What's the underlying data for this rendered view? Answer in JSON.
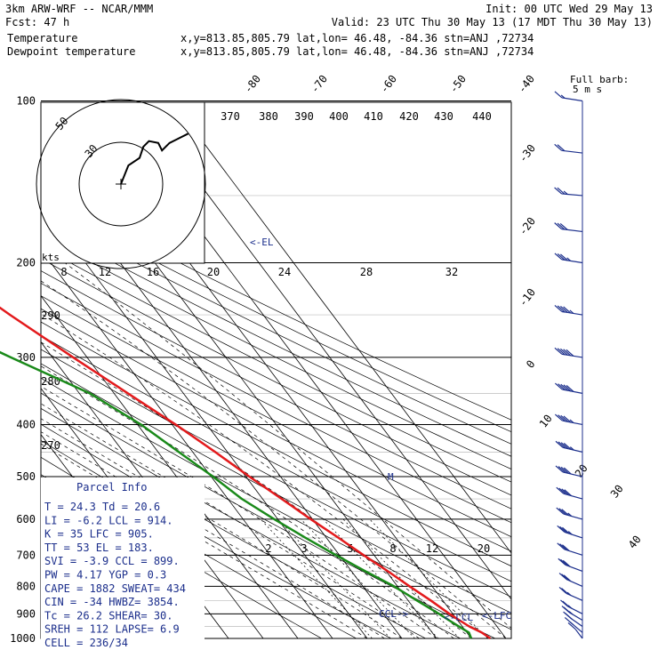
{
  "header": {
    "line1_left": "3km ARW-WRF -- NCAR/MMM",
    "line1_right": "Init: 00 UTC Wed 29 May 13",
    "line2_left": "Fcst:    47 h",
    "line2_right": "Valid: 23 UTC Thu 30 May 13 (17 MDT Thu 30 May 13)",
    "temp_label": "Temperature",
    "temp_info": "x,y=813.85,805.79   lat,lon= 46.48, -84.36  stn=ANJ ,72734",
    "dew_label": "Dewpoint temperature",
    "dew_info": "x,y=813.85,805.79   lat,lon= 46.48, -84.36  stn=ANJ ,72734"
  },
  "colors": {
    "temperature": "#e31a1c",
    "dewpoint": "#1a8a1a",
    "parcel_text": "#1c2f8c",
    "grid": "#000000"
  },
  "barb_legend": {
    "line1": "Full barb:",
    "line2": "5 m s"
  },
  "parcel_info": {
    "title": "Parcel Info",
    "rows": [
      "T  =   24.3 Td =  20.6",
      "LI =   -6.2 LCL =  914.",
      "K  =     35 LFC =  905.",
      "TT =     53 EL  =  183.",
      "SVI =  -3.9 CCL =  899.",
      "PW =   4.17 YGP =   0.3",
      "CAPE = 1882 SWEAT=  434",
      "CIN =   -34 HWBZ= 3854.",
      "Tc =   26.2 SHEAR=  30.",
      "SREH =  112 LAPSE=  6.9",
      "CELL = 236/34"
    ]
  },
  "annotations": {
    "el": "<-EL",
    "lcl": "<-LCL",
    "lfc": "<-LFC",
    "ccl": "CCL->",
    "m": "M"
  },
  "hodograph": {
    "units": "kts",
    "ring_labels": [
      "50",
      "30"
    ]
  },
  "chart_data": {
    "type": "line",
    "diagram": "skew-T log-p",
    "pressure_levels": [
      100,
      200,
      300,
      400,
      500,
      600,
      700,
      800,
      900,
      1000
    ],
    "pressure_labels": [
      "100",
      "200",
      "300",
      "400",
      "500",
      "600",
      "700",
      "800",
      "900",
      "1000"
    ],
    "isotherm_labels": [
      "-80",
      "-70",
      "-60",
      "-50",
      "-40",
      "-30",
      "-20",
      "-10",
      "0",
      "10",
      "20",
      "30",
      "40"
    ],
    "theta_labels": [
      "370",
      "380",
      "390",
      "400",
      "410",
      "420",
      "430",
      "440",
      "290",
      "280",
      "270"
    ],
    "mixing_ratio_labels": [
      "2",
      "3",
      "5",
      "8",
      "12",
      "20"
    ],
    "inset_axis_labels": [
      "8",
      "12",
      "16",
      "20",
      "24",
      "28",
      "32"
    ],
    "series": [
      {
        "name": "Temperature",
        "points": [
          {
            "p": 1000,
            "t": 25.5
          },
          {
            "p": 975,
            "t": 24.3
          },
          {
            "p": 950,
            "t": 22.0
          },
          {
            "p": 925,
            "t": 20.5
          },
          {
            "p": 900,
            "t": 19.0
          },
          {
            "p": 850,
            "t": 16.5
          },
          {
            "p": 800,
            "t": 13.5
          },
          {
            "p": 750,
            "t": 10.5
          },
          {
            "p": 700,
            "t": 7.0
          },
          {
            "p": 650,
            "t": 3.5
          },
          {
            "p": 600,
            "t": -0.5
          },
          {
            "p": 550,
            "t": -4.5
          },
          {
            "p": 500,
            "t": -9.0
          },
          {
            "p": 450,
            "t": -13.5
          },
          {
            "p": 400,
            "t": -19.0
          },
          {
            "p": 350,
            "t": -26.0
          },
          {
            "p": 300,
            "t": -34.0
          },
          {
            "p": 250,
            "t": -43.0
          },
          {
            "p": 200,
            "t": -53.0
          },
          {
            "p": 175,
            "t": -58.5
          },
          {
            "p": 150,
            "t": -61.0
          },
          {
            "p": 135,
            "t": -61.5
          },
          {
            "p": 125,
            "t": -63.0
          },
          {
            "p": 110,
            "t": -65.0
          },
          {
            "p": 100,
            "t": -66.0
          }
        ]
      },
      {
        "name": "Dewpoint temperature",
        "points": [
          {
            "p": 1000,
            "t": 20.0
          },
          {
            "p": 975,
            "t": 20.6
          },
          {
            "p": 950,
            "t": 19.0
          },
          {
            "p": 925,
            "t": 17.5
          },
          {
            "p": 900,
            "t": 16.0
          },
          {
            "p": 850,
            "t": 12.5
          },
          {
            "p": 800,
            "t": 9.0
          },
          {
            "p": 750,
            "t": 4.0
          },
          {
            "p": 700,
            "t": -1.0
          },
          {
            "p": 650,
            "t": -6.0
          },
          {
            "p": 600,
            "t": -11.0
          },
          {
            "p": 550,
            "t": -16.0
          },
          {
            "p": 500,
            "t": -19.5
          },
          {
            "p": 450,
            "t": -24.0
          },
          {
            "p": 400,
            "t": -29.0
          },
          {
            "p": 350,
            "t": -37.0
          },
          {
            "p": 300,
            "t": -52.0
          },
          {
            "p": 275,
            "t": -60.0
          },
          {
            "p": 250,
            "t": -63.0
          },
          {
            "p": 225,
            "t": -68.0
          },
          {
            "p": 200,
            "t": -73.0
          },
          {
            "p": 175,
            "t": -76.0
          },
          {
            "p": 160,
            "t": -76.0
          },
          {
            "p": 150,
            "t": -82.0
          },
          {
            "p": 135,
            "t": -95.0
          },
          {
            "p": 100,
            "t": -110.0
          }
        ]
      }
    ],
    "hodograph_trace": [
      [
        0,
        0
      ],
      [
        4,
        10
      ],
      [
        10,
        14
      ],
      [
        12,
        20
      ],
      [
        15,
        23
      ],
      [
        20,
        22
      ],
      [
        22,
        18
      ],
      [
        26,
        22
      ],
      [
        30,
        24
      ],
      [
        36,
        27
      ]
    ],
    "wind_barbs": [
      {
        "p": 1000,
        "dir": 200,
        "kts": 10
      },
      {
        "p": 975,
        "dir": 210,
        "kts": 15
      },
      {
        "p": 950,
        "dir": 215,
        "kts": 20
      },
      {
        "p": 925,
        "dir": 220,
        "kts": 25
      },
      {
        "p": 900,
        "dir": 225,
        "kts": 25
      },
      {
        "p": 850,
        "dir": 230,
        "kts": 25
      },
      {
        "p": 800,
        "dir": 230,
        "kts": 30
      },
      {
        "p": 750,
        "dir": 235,
        "kts": 30
      },
      {
        "p": 700,
        "dir": 240,
        "kts": 30
      },
      {
        "p": 650,
        "dir": 240,
        "kts": 35
      },
      {
        "p": 600,
        "dir": 245,
        "kts": 35
      },
      {
        "p": 550,
        "dir": 245,
        "kts": 40
      },
      {
        "p": 500,
        "dir": 250,
        "kts": 40
      },
      {
        "p": 450,
        "dir": 250,
        "kts": 45
      },
      {
        "p": 400,
        "dir": 255,
        "kts": 45
      },
      {
        "p": 350,
        "dir": 255,
        "kts": 50
      },
      {
        "p": 300,
        "dir": 260,
        "kts": 50
      },
      {
        "p": 250,
        "dir": 260,
        "kts": 45
      },
      {
        "p": 200,
        "dir": 260,
        "kts": 35
      },
      {
        "p": 175,
        "dir": 265,
        "kts": 30
      },
      {
        "p": 150,
        "dir": 270,
        "kts": 25
      },
      {
        "p": 125,
        "dir": 275,
        "kts": 20
      },
      {
        "p": 100,
        "dir": 280,
        "kts": 15
      }
    ]
  }
}
